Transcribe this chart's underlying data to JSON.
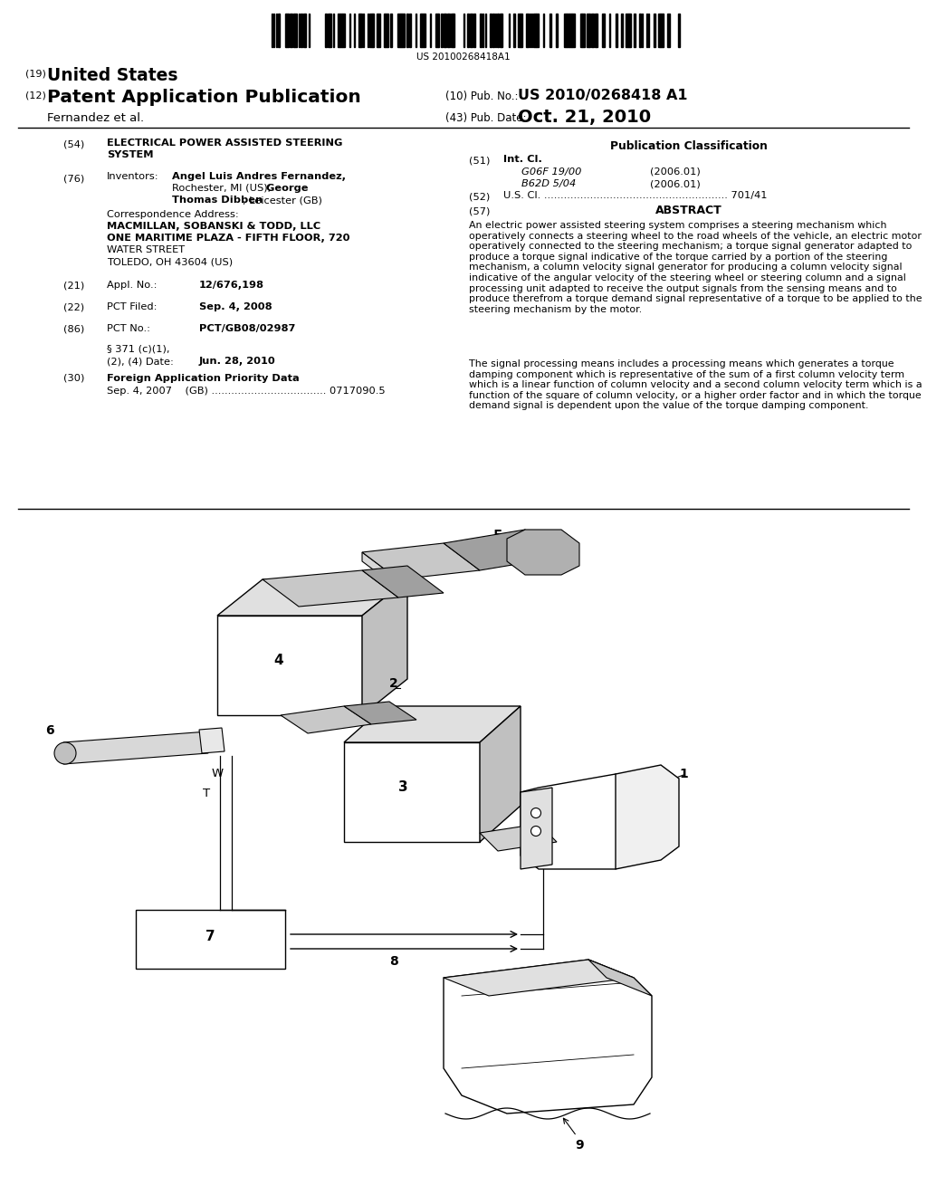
{
  "background_color": "#ffffff",
  "barcode_text": "US 20100268418A1",
  "header": {
    "country_label": "(19)",
    "country": "United States",
    "type_label": "(12)",
    "type": "Patent Application Publication",
    "pub_no_label": "(10) Pub. No.:",
    "pub_no": "US 2010/0268418 A1",
    "date_label": "(43) Pub. Date:",
    "date": "Oct. 21, 2010",
    "author": "Fernandez et al."
  },
  "left_col": {
    "title_num": "(54)",
    "title_line1": "ELECTRICAL POWER ASSISTED STEERING",
    "title_line2": "SYSTEM",
    "inventors_num": "(76)",
    "inventors_label": "Inventors:",
    "inv_name1": "Angel Luis Andres Fernandez,",
    "inv_name2": "Rochester, MI (US); George",
    "inv_name2b": "George",
    "inv_name3": "Thomas Dibben, Leicester (GB)",
    "inv_name3b": "Thomas Dibben",
    "corr_label": "Correspondence Address:",
    "corr_lines": [
      "MACMILLAN, SOBANSKI & TODD, LLC",
      "ONE MARITIME PLAZA - FIFTH FLOOR, 720",
      "WATER STREET",
      "TOLEDO, OH 43604 (US)"
    ],
    "appl_num": "(21)",
    "appl_label": "Appl. No.:",
    "appl_val": "12/676,198",
    "pct_filed_num": "(22)",
    "pct_filed_label": "PCT Filed:",
    "pct_filed_val": "Sep. 4, 2008",
    "pct_no_num": "(86)",
    "pct_no_label": "PCT No.:",
    "pct_no_val": "PCT/GB08/02987",
    "section_line1": "§ 371 (c)(1),",
    "section_line2": "(2), (4) Date:",
    "section_val": "Jun. 28, 2010",
    "foreign_num": "(30)",
    "foreign_label": "Foreign Application Priority Data",
    "foreign_val": "Sep. 4, 2007    (GB) ................................... 0717090.5"
  },
  "right_col": {
    "pub_class_title": "Publication Classification",
    "int_cl_num": "(51)",
    "int_cl_label": "Int. Cl.",
    "int_cl_1": "G06F 19/00",
    "int_cl_1_date": "(2006.01)",
    "int_cl_2": "B62D 5/04",
    "int_cl_2_date": "(2006.01)",
    "us_cl_num": "(52)",
    "us_cl_label": "U.S. Cl. ........................................................ 701/41",
    "abstract_num": "(57)",
    "abstract_title": "ABSTRACT",
    "abstract_p1": "An electric power assisted steering system comprises a steering mechanism which operatively connects a steering wheel to the road wheels of the vehicle, an electric motor operatively connected to the steering mechanism; a torque signal generator adapted to produce a torque signal indicative of the torque carried by a portion of the steering mechanism, a column velocity signal generator for producing a column velocity signal indicative of the angular velocity of the steering wheel or steering column and a signal processing unit adapted to receive the output signals from the sensing means and to produce therefrom a torque demand signal representative of a torque to be applied to the steering mechanism by the motor.",
    "abstract_p2": "The signal processing means includes a processing means which generates a torque damping component which is representative of the sum of a first column velocity term which is a linear function of column velocity and a second column velocity term which is a function of the square of column velocity, or a higher order factor and in which the torque demand signal is dependent upon the value of the torque damping component."
  }
}
